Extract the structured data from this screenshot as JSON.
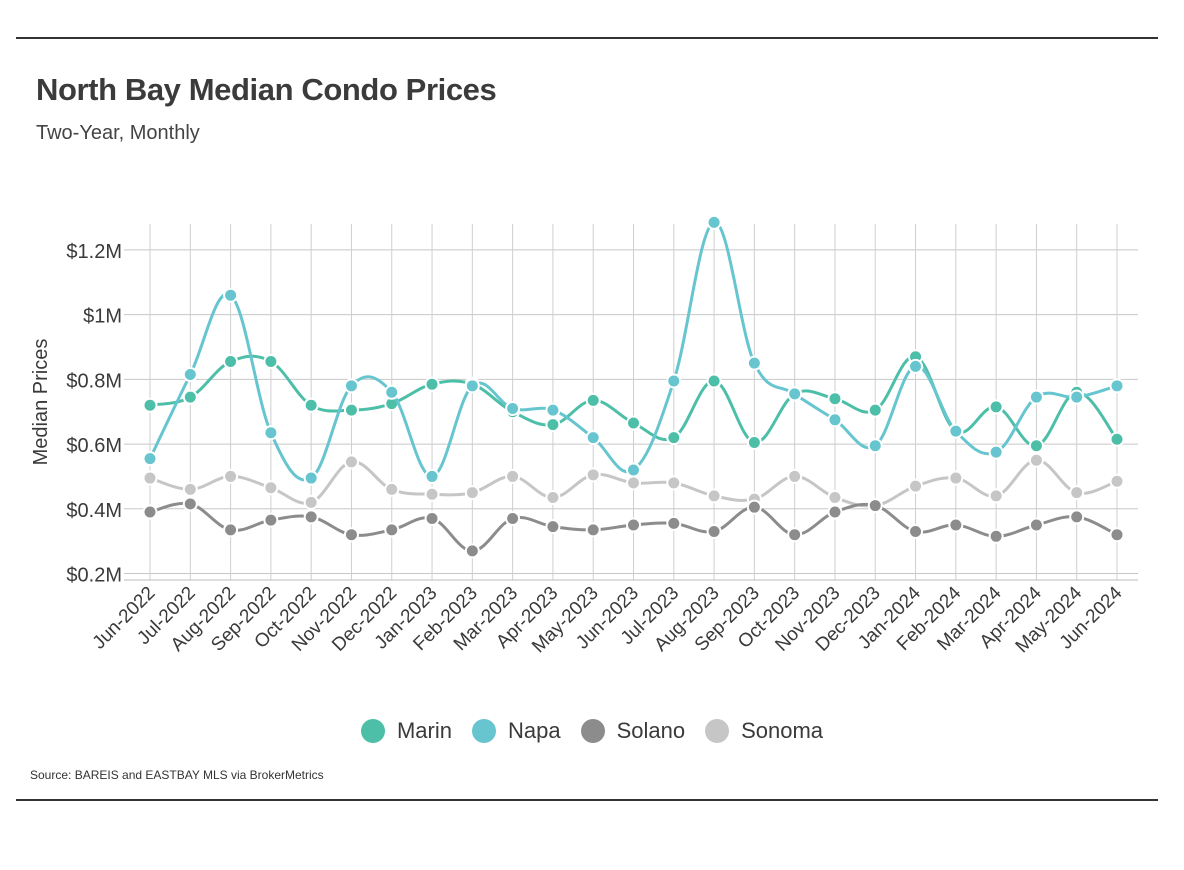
{
  "header": {
    "title": "North Bay Median Condo Prices",
    "subtitle": "Two-Year, Monthly"
  },
  "footer": {
    "source": "Source:  BAREIS and EASTBAY MLS via BrokerMetrics"
  },
  "chart_data": {
    "type": "line",
    "title": "North Bay Median Condo Prices",
    "subtitle": "Two-Year, Monthly",
    "xlabel": "",
    "ylabel": "Median Prices",
    "ylim": [
      180000,
      1280000
    ],
    "yticks": [
      200000,
      400000,
      600000,
      800000,
      1000000,
      1200000
    ],
    "ytick_labels": [
      "$0.2M",
      "$0.4M",
      "$0.6M",
      "$0.8M",
      "$1M",
      "$1.2M"
    ],
    "grid": true,
    "legend_position": "bottom",
    "categories": [
      "Jun-2022",
      "Jul-2022",
      "Aug-2022",
      "Sep-2022",
      "Oct-2022",
      "Nov-2022",
      "Dec-2022",
      "Jan-2023",
      "Feb-2023",
      "Mar-2023",
      "Apr-2023",
      "May-2023",
      "Jun-2023",
      "Jul-2023",
      "Aug-2023",
      "Sep-2023",
      "Oct-2023",
      "Nov-2023",
      "Dec-2023",
      "Jan-2024",
      "Feb-2024",
      "Mar-2024",
      "Apr-2024",
      "May-2024",
      "Jun-2024"
    ],
    "series": [
      {
        "name": "Marin",
        "color": "#4dbfa8",
        "values": [
          720000,
          745000,
          855000,
          855000,
          720000,
          705000,
          725000,
          785000,
          785000,
          700000,
          660000,
          735000,
          665000,
          620000,
          795000,
          605000,
          755000,
          740000,
          705000,
          870000,
          640000,
          715000,
          595000,
          760000,
          615000
        ]
      },
      {
        "name": "Napa",
        "color": "#66c5cf",
        "values": [
          555000,
          815000,
          1060000,
          635000,
          495000,
          780000,
          760000,
          500000,
          780000,
          710000,
          705000,
          620000,
          520000,
          795000,
          1285000,
          850000,
          755000,
          675000,
          595000,
          840000,
          640000,
          575000,
          745000,
          745000,
          780000
        ]
      },
      {
        "name": "Solano",
        "color": "#8c8c8c",
        "values": [
          390000,
          415000,
          335000,
          365000,
          375000,
          320000,
          335000,
          370000,
          270000,
          370000,
          345000,
          335000,
          350000,
          355000,
          330000,
          405000,
          320000,
          390000,
          410000,
          330000,
          350000,
          315000,
          350000,
          375000,
          320000
        ]
      },
      {
        "name": "Sonoma",
        "color": "#c6c6c6",
        "values": [
          495000,
          460000,
          500000,
          465000,
          420000,
          545000,
          460000,
          445000,
          450000,
          500000,
          435000,
          505000,
          480000,
          480000,
          440000,
          430000,
          500000,
          435000,
          410000,
          470000,
          495000,
          440000,
          550000,
          450000,
          485000
        ]
      }
    ]
  }
}
